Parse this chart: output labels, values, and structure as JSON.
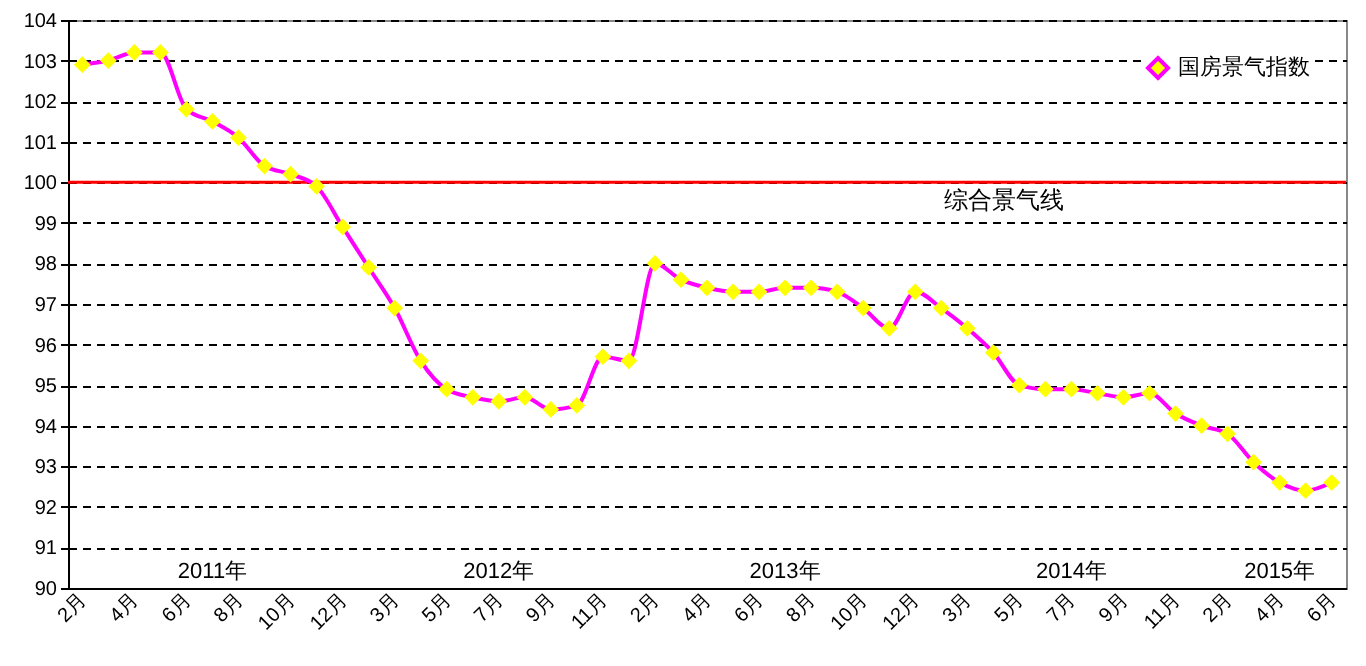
{
  "chart_data": {
    "type": "line",
    "categories": [
      "2月",
      null,
      "4月",
      null,
      "6月",
      null,
      "8月",
      null,
      "10月",
      null,
      "12月",
      null,
      "3月",
      null,
      "5月",
      null,
      "7月",
      null,
      "9月",
      null,
      "11月",
      null,
      "2月",
      null,
      "4月",
      null,
      "6月",
      null,
      "8月",
      null,
      "10月",
      null,
      "12月",
      null,
      "3月",
      null,
      "5月",
      null,
      "7月",
      null,
      "9月",
      null,
      "11月",
      null,
      "2月",
      null,
      "4月",
      null,
      "6月"
    ],
    "series": [
      {
        "name": "国房景气指数",
        "color": "#ff00ff",
        "values": [
          102.9,
          103.0,
          103.2,
          103.2,
          101.8,
          101.5,
          101.1,
          100.4,
          100.2,
          99.9,
          98.9,
          97.9,
          96.9,
          95.6,
          94.9,
          94.7,
          94.6,
          94.7,
          94.4,
          94.5,
          95.7,
          95.6,
          98.0,
          97.6,
          97.4,
          97.3,
          97.3,
          97.4,
          97.4,
          97.3,
          96.9,
          96.4,
          97.3,
          96.9,
          96.4,
          95.8,
          95.0,
          94.9,
          94.9,
          94.8,
          94.7,
          94.8,
          94.3,
          94.0,
          93.8,
          93.1,
          92.6,
          92.4,
          92.6
        ]
      }
    ],
    "ylim": [
      90,
      104
    ],
    "yticks": [
      90,
      91,
      92,
      93,
      94,
      95,
      96,
      97,
      98,
      99,
      100,
      101,
      102,
      103,
      104
    ],
    "grid": "y",
    "legend": "top right",
    "marker": "diamond",
    "line_style": "solid",
    "ref_lines": [
      {
        "axis": "y",
        "value": 100,
        "label": "综合景气线",
        "color": "#ff0000"
      }
    ],
    "annotations": [
      "2011年",
      "2012年",
      "2013年",
      "2014年",
      "2015年"
    ]
  }
}
